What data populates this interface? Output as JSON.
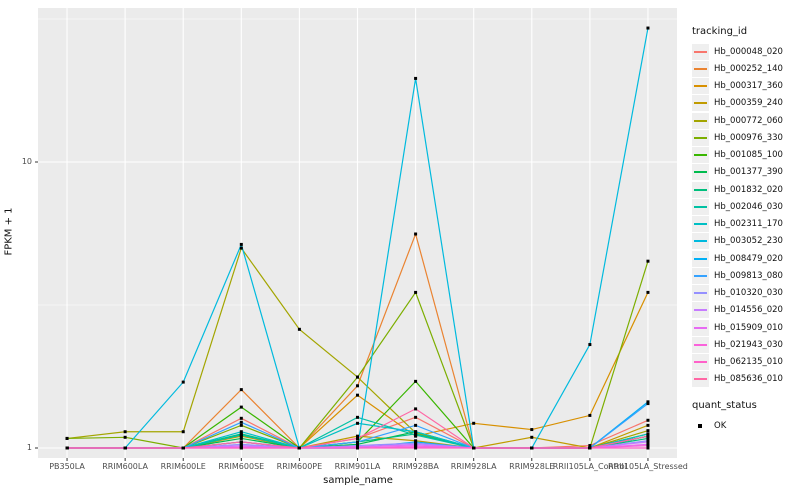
{
  "chart_data": {
    "type": "line",
    "title": "",
    "xlabel": "sample_name",
    "ylabel": "FPKM + 1",
    "scale": "log10",
    "ylim": [
      1,
      35
    ],
    "grid": true,
    "legend_position": "right",
    "y_ticks": [
      {
        "label": "1",
        "value": 1
      },
      {
        "label": "10",
        "value": 10
      }
    ],
    "y_minor_ticks": [
      3.1623,
      31.623
    ],
    "categories": [
      "PB350LA",
      "RRIM600LA",
      "RRIM600LE",
      "RRIM600SE",
      "RRIM600PE",
      "RRIM901LA",
      "RRIM928BA",
      "RRIM928LA",
      "RRIM928LE",
      "RRII105LA_Control",
      "RRII105LA_Stressed"
    ],
    "legend": {
      "tracking_title": "tracking_id",
      "quant_title": "quant_status",
      "quant_label": "OK"
    },
    "colors": {
      "panel_bg": "#EBEBEB",
      "grid": "#FFFFFF",
      "point": "#000000",
      "tick": "#333333",
      "tick_label": "#4D4D4D"
    },
    "series": [
      {
        "name": "Hb_000048_020",
        "color": "#F8766D",
        "values": [
          1,
          1,
          1,
          1.27,
          1,
          1.08,
          1.28,
          1,
          1,
          1.02,
          1.25
        ]
      },
      {
        "name": "Hb_000252_140",
        "color": "#EA8331",
        "values": [
          1,
          1,
          1,
          1.6,
          1,
          1.65,
          5.6,
          1,
          1,
          1,
          1.1
        ]
      },
      {
        "name": "Hb_000317_360",
        "color": "#D89000",
        "values": [
          1,
          1,
          1,
          1.05,
          1,
          1.53,
          1.1,
          1.22,
          1.16,
          1.3,
          3.5
        ]
      },
      {
        "name": "Hb_000359_240",
        "color": "#C09B00",
        "values": [
          1,
          1,
          1,
          1.1,
          1,
          1.1,
          1.06,
          1,
          1.09,
          1,
          1.2
        ]
      },
      {
        "name": "Hb_000772_060",
        "color": "#A3A500",
        "values": [
          1.08,
          1.14,
          1.14,
          5.0,
          2.6,
          1.77,
          1.13,
          1,
          1,
          1,
          1.15
        ]
      },
      {
        "name": "Hb_000976_330",
        "color": "#7CAE00",
        "values": [
          1.08,
          1.09,
          1,
          1.2,
          1,
          1.77,
          3.5,
          1,
          1,
          1,
          4.5
        ]
      },
      {
        "name": "Hb_001085_100",
        "color": "#39B600",
        "values": [
          1,
          1,
          1,
          1.39,
          1,
          1.05,
          1.71,
          1,
          1,
          1,
          1.12
        ]
      },
      {
        "name": "Hb_001377_390",
        "color": "#00BB4E",
        "values": [
          1,
          1,
          1,
          1.08,
          1,
          1.03,
          1.14,
          1,
          1,
          1,
          1.1
        ]
      },
      {
        "name": "Hb_001832_020",
        "color": "#00BF7D",
        "values": [
          1,
          1,
          1,
          1.12,
          1,
          1.05,
          1.12,
          1,
          1,
          1,
          1.08
        ]
      },
      {
        "name": "Hb_002046_030",
        "color": "#00C1A3",
        "values": [
          1,
          1,
          1,
          1.11,
          1,
          1.28,
          1.11,
          1,
          1,
          1,
          1.1
        ]
      },
      {
        "name": "Hb_002311_170",
        "color": "#00BFC4",
        "values": [
          1,
          1,
          1,
          1.14,
          1,
          1.22,
          1.14,
          1,
          1,
          1,
          1.12
        ]
      },
      {
        "name": "Hb_003052_230",
        "color": "#00BADE",
        "values": [
          1,
          1,
          1.7,
          5.15,
          1,
          1,
          19.6,
          1,
          1,
          2.3,
          29.4
        ]
      },
      {
        "name": "Hb_008479_020",
        "color": "#00B0F6",
        "values": [
          1,
          1,
          1,
          1.05,
          1,
          1,
          1.05,
          1,
          1,
          1,
          1.45
        ]
      },
      {
        "name": "Hb_009813_080",
        "color": "#35A2FF",
        "values": [
          1,
          1,
          1,
          1.23,
          1,
          1.05,
          1.2,
          1,
          1,
          1,
          1.43
        ]
      },
      {
        "name": "Hb_010320_030",
        "color": "#9590FF",
        "values": [
          1,
          1,
          1,
          1.03,
          1,
          1.02,
          1.04,
          1,
          1,
          1,
          1.06
        ]
      },
      {
        "name": "Hb_014556_020",
        "color": "#C77CFF",
        "values": [
          1,
          1,
          1,
          1.02,
          1,
          1.01,
          1.03,
          1,
          1,
          1,
          1.05
        ]
      },
      {
        "name": "Hb_015909_010",
        "color": "#E76BF3",
        "values": [
          1,
          1,
          1,
          1.01,
          1,
          1.01,
          1.02,
          1,
          1,
          1,
          1.03
        ]
      },
      {
        "name": "Hb_021943_030",
        "color": "#FA62DB",
        "values": [
          1,
          1,
          1,
          1,
          1,
          1,
          1.01,
          1,
          1,
          1,
          1.02
        ]
      },
      {
        "name": "Hb_062135_010",
        "color": "#FF61C9",
        "values": [
          1,
          1,
          1,
          1,
          1,
          1,
          1,
          1,
          1,
          1,
          1
        ]
      },
      {
        "name": "Hb_085636_010",
        "color": "#FF67A4",
        "values": [
          1,
          1,
          1,
          1.05,
          1,
          1.08,
          1.37,
          1,
          1,
          1,
          1.1
        ]
      }
    ]
  }
}
